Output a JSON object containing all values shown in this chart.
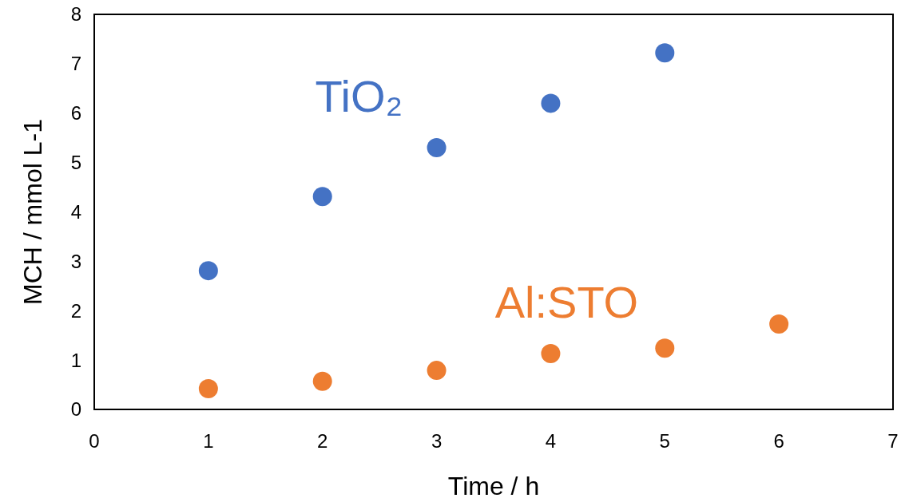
{
  "chart_data": {
    "type": "scatter",
    "xlabel": "Time / h",
    "ylabel": "MCH / mmol L-1",
    "xlim": [
      0,
      7
    ],
    "xticks": [
      0,
      1,
      2,
      3,
      4,
      5,
      6,
      7
    ],
    "ylim": [
      0,
      8
    ],
    "yticks": [
      0,
      1,
      2,
      3,
      4,
      5,
      6,
      7,
      8
    ],
    "grid": false,
    "marker": "circle",
    "series": [
      {
        "name": "TiO₂",
        "color": "#4472c4",
        "x": [
          1,
          2,
          3,
          4,
          5
        ],
        "values": [
          2.81,
          4.31,
          5.3,
          6.2,
          7.22
        ]
      },
      {
        "name": "Al:STO",
        "color": "#ed7d31",
        "x": [
          1,
          2,
          3,
          4,
          5,
          6
        ],
        "values": [
          0.42,
          0.57,
          0.79,
          1.13,
          1.24,
          1.73
        ]
      }
    ]
  }
}
